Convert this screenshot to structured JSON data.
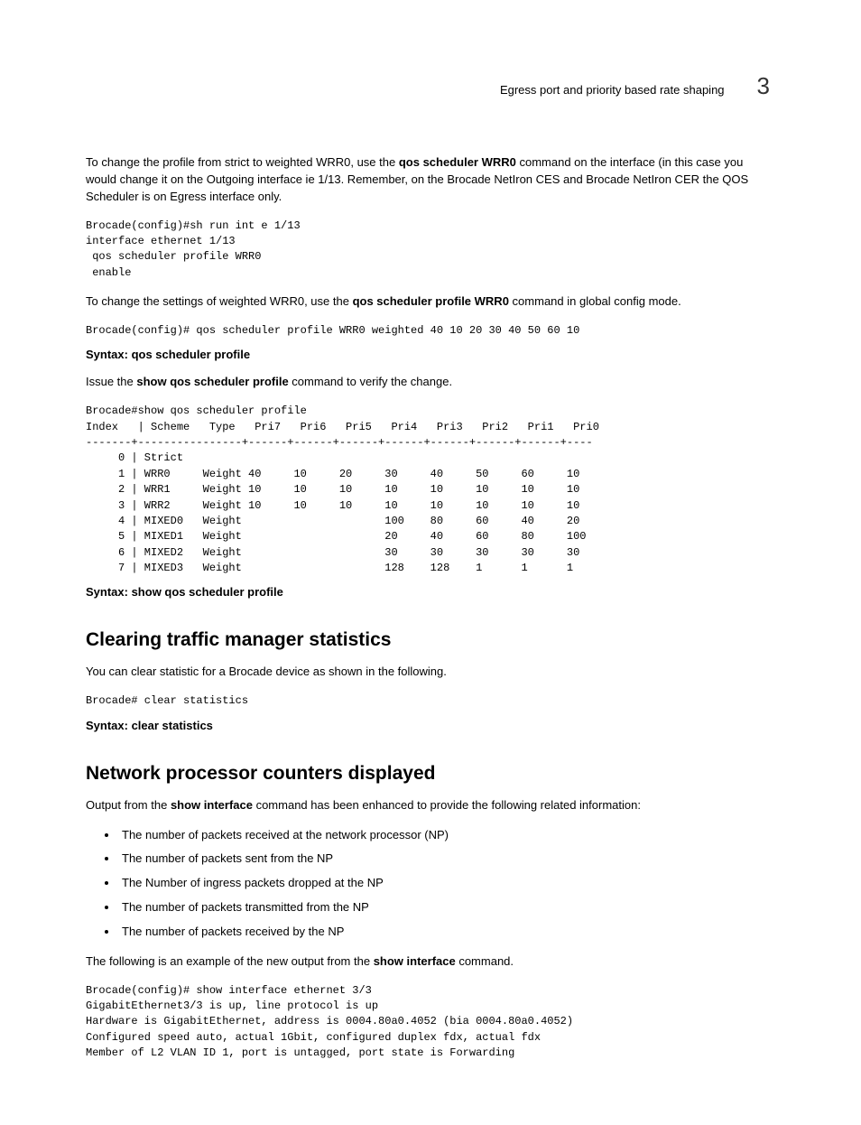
{
  "header": {
    "title": "Egress port and priority based rate shaping",
    "chapter": "3"
  },
  "p1_pre": "To change the profile from strict to weighted WRR0, use the ",
  "p1_cmd1": "qos scheduler WRR0",
  "p1_mid": " command on the interface (in this case you would change it on the Outgoing interface ie  1/13. Remember, on the Brocade NetIron CES and Brocade NetIron CER the QOS Scheduler is on Egress interface only.",
  "code1": "Brocade(config)#sh run int e 1/13\ninterface ethernet 1/13\n qos scheduler profile WRR0\n enable",
  "p2_pre": "To change the settings of weighted WRR0, use the ",
  "p2_cmd": "qos scheduler profile WRR0",
  "p2_post": " command in global config mode.",
  "code2": "Brocade(config)# qos scheduler profile WRR0 weighted 40 10 20 30 40 50 60 10",
  "syntax1_label": "Syntax:  ",
  "syntax1_cmd": "qos scheduler profile",
  "p3_pre": "Issue the ",
  "p3_cmd": "show qos scheduler profile",
  "p3_post": " command to verify the change.",
  "code3": "Brocade#show qos scheduler profile\nIndex   | Scheme   Type   Pri7   Pri6   Pri5   Pri4   Pri3   Pri2   Pri1   Pri0\n-------+----------------+------+------+------+------+------+------+------+----\n     0 | Strict   \n     1 | WRR0     Weight 40     10     20     30     40     50     60     10\n     2 | WRR1     Weight 10     10     10     10     10     10     10     10\n     3 | WRR2     Weight 10     10     10     10     10     10     10     10\n     4 | MIXED0   Weight                      100    80     60     40     20\n     5 | MIXED1   Weight                      20     40     60     80     100\n     6 | MIXED2   Weight                      30     30     30     30     30\n     7 | MIXED3   Weight                      128    128    1      1      1",
  "syntax2_label": "Syntax:  ",
  "syntax2_cmd": "show qos scheduler profile",
  "sec1_title": "Clearing traffic manager statistics",
  "sec1_p": "You can clear statistic for a Brocade device as shown in the following.",
  "code4": "Brocade# clear statistics",
  "syntax3_label": "Syntax:  ",
  "syntax3_cmd": "clear statistics",
  "sec2_title": "Network processor counters displayed",
  "sec2_p_pre": "Output from the ",
  "sec2_p_cmd": "show interface",
  "sec2_p_post": " command has been enhanced to provide the following related information:",
  "bullets": [
    "The number of packets received at the network processor (NP)",
    "The number of packets sent from the NP",
    "The Number of ingress packets dropped at the NP",
    "The number of packets transmitted from the NP",
    "The number of packets received by the NP"
  ],
  "sec2_p2_pre": "The following is an example of the new output from the ",
  "sec2_p2_cmd": "show interface",
  "sec2_p2_post": " command.",
  "code5": "Brocade(config)# show interface ethernet 3/3\nGigabitEthernet3/3 is up, line protocol is up\nHardware is GigabitEthernet, address is 0004.80a0.4052 (bia 0004.80a0.4052)\nConfigured speed auto, actual 1Gbit, configured duplex fdx, actual fdx\nMember of L2 VLAN ID 1, port is untagged, port state is Forwarding"
}
